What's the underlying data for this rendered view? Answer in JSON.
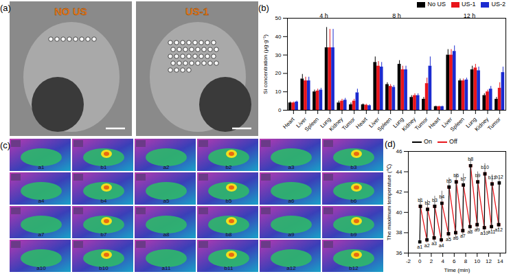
{
  "chart_data": [
    {
      "type": "bar",
      "title": "(b)",
      "y_label": "Si concentration (μg·g⁻¹)",
      "categories": [
        "Heart",
        "Liver",
        "Spleen",
        "Lung",
        "Kidney",
        "Tumor",
        "Heart",
        "Liver",
        "Spleen",
        "Lung",
        "Kidney",
        "Tumor",
        "Heart",
        "Liver",
        "Spleen",
        "Lung",
        "Kidney",
        "Tumor"
      ],
      "groups": [
        "4 h",
        "8 h",
        "12 h"
      ],
      "series": [
        {
          "name": "No US",
          "color": "#000000",
          "values": [
            4,
            17,
            10,
            34,
            4,
            3,
            3,
            26,
            14,
            25,
            7,
            6,
            2,
            30,
            16,
            22,
            8,
            6
          ],
          "errors": [
            0.5,
            2.5,
            1,
            11,
            1,
            1,
            0.5,
            3,
            1,
            2,
            1,
            1,
            0.3,
            3,
            1,
            2,
            1,
            1
          ]
        },
        {
          "name": "US-1",
          "color": "#e8151b",
          "values": [
            4,
            16,
            10.5,
            34,
            5,
            5,
            2.8,
            24,
            13,
            22,
            8,
            14.5,
            2,
            30,
            16,
            23,
            10,
            12
          ],
          "errors": [
            0.5,
            2,
            1,
            10,
            1,
            1,
            0.5,
            2.5,
            1,
            2,
            1,
            3,
            0.3,
            3,
            1,
            2,
            1,
            3
          ]
        },
        {
          "name": "US-2",
          "color": "#1b2bd0",
          "values": [
            4.5,
            16,
            11,
            34,
            5.5,
            9.5,
            2.5,
            23.5,
            12.5,
            22,
            8,
            24,
            2,
            32,
            16.5,
            21.5,
            11.5,
            20.5
          ],
          "errors": [
            0.5,
            2,
            1,
            10,
            1,
            2,
            0.5,
            2.5,
            1,
            2,
            1,
            5,
            0.3,
            3,
            1,
            2,
            1.5,
            3
          ]
        }
      ],
      "ylim": [
        0,
        50
      ],
      "yticks": [
        0,
        10,
        20,
        30,
        40,
        50
      ],
      "legend": "top-right"
    },
    {
      "type": "line",
      "title": "(d)",
      "x_label": "Time (min)",
      "y_label": "The maximum temperature (℃)",
      "xlim": [
        -2,
        15
      ],
      "xticks": [
        -2,
        0,
        2,
        4,
        6,
        8,
        10,
        12,
        14
      ],
      "ylim": [
        36,
        46
      ],
      "yticks": [
        36,
        38,
        40,
        42,
        44,
        46
      ],
      "legend": "top-left",
      "marker": "square",
      "line_style": "solid",
      "series": [
        {
          "name": "On",
          "color": "#000000",
          "x": [
            0,
            0.1,
            null,
            1.25,
            1.35,
            null,
            2.5,
            2.6,
            null,
            3.75,
            3.85,
            null,
            5,
            5.1,
            null,
            6.25,
            6.35,
            null,
            7.5,
            7.6,
            null,
            8.75,
            8.85,
            null,
            10,
            10.1,
            null,
            11.25,
            11.35,
            null,
            12.5,
            12.6,
            null,
            13.75,
            13.85
          ],
          "values": [
            37.1,
            40.6,
            null,
            37.3,
            40.3,
            null,
            37.5,
            40.6,
            null,
            37.3,
            40.9,
            null,
            37.9,
            42.5,
            null,
            38.0,
            43.0,
            null,
            38.2,
            42.7,
            null,
            38.6,
            44.6,
            null,
            38.8,
            43.0,
            null,
            38.5,
            43.8,
            null,
            38.6,
            42.8,
            null,
            38.8,
            42.9
          ],
          "errors": [
            0.2,
            0.8,
            null,
            0.3,
            0.9,
            null,
            0.4,
            1.0,
            null,
            0.3,
            1.2,
            null,
            0.4,
            0.9,
            null,
            0.5,
            0.8,
            null,
            0.5,
            1.1,
            null,
            0.4,
            0.6,
            null,
            0.6,
            1.0,
            null,
            0.5,
            1.0,
            null,
            0.4,
            0.9,
            null,
            0.5,
            0.4
          ],
          "labels": [
            "a1",
            "b1",
            null,
            "a2",
            "b2",
            null,
            "a3",
            "b3",
            null,
            "a4",
            "b4",
            null,
            "a5",
            "b5",
            null,
            "a6",
            "b6",
            null,
            "a7",
            "b7",
            null,
            "a8",
            "b8",
            null,
            "a9",
            "b9",
            null,
            "a10",
            "b10",
            null,
            "a11",
            "b11",
            null,
            "a12",
            "b12"
          ]
        },
        {
          "name": "Off",
          "color": "#e8151b",
          "x": [
            0.1,
            1.25,
            null,
            1.35,
            2.5,
            null,
            2.6,
            3.75,
            null,
            3.85,
            5,
            null,
            5.1,
            6.25,
            null,
            6.35,
            7.5,
            null,
            7.6,
            8.75,
            null,
            8.85,
            10,
            null,
            10.1,
            11.25,
            null,
            11.35,
            12.5,
            null,
            12.6,
            13.75
          ],
          "values": [
            40.6,
            37.3,
            null,
            40.3,
            37.5,
            null,
            40.6,
            37.3,
            null,
            40.9,
            37.9,
            null,
            42.5,
            38.0,
            null,
            43.0,
            38.2,
            null,
            42.7,
            38.6,
            null,
            44.6,
            38.8,
            null,
            43.0,
            38.5,
            null,
            43.8,
            38.6,
            null,
            42.8,
            38.8
          ]
        }
      ]
    }
  ],
  "images": {
    "a": {
      "panel": "(a)",
      "tiles": [
        "NO US",
        "US-1"
      ]
    },
    "c": {
      "panel": "(c)",
      "tiles": [
        "a1",
        "b1",
        "a2",
        "b2",
        "a3",
        "b3",
        "a4",
        "b4",
        "a5",
        "b5",
        "a6",
        "b6",
        "a7",
        "b7",
        "a8",
        "b8",
        "a9",
        "b9",
        "a10",
        "b10",
        "a11",
        "b11",
        "a12",
        "b12"
      ]
    }
  }
}
